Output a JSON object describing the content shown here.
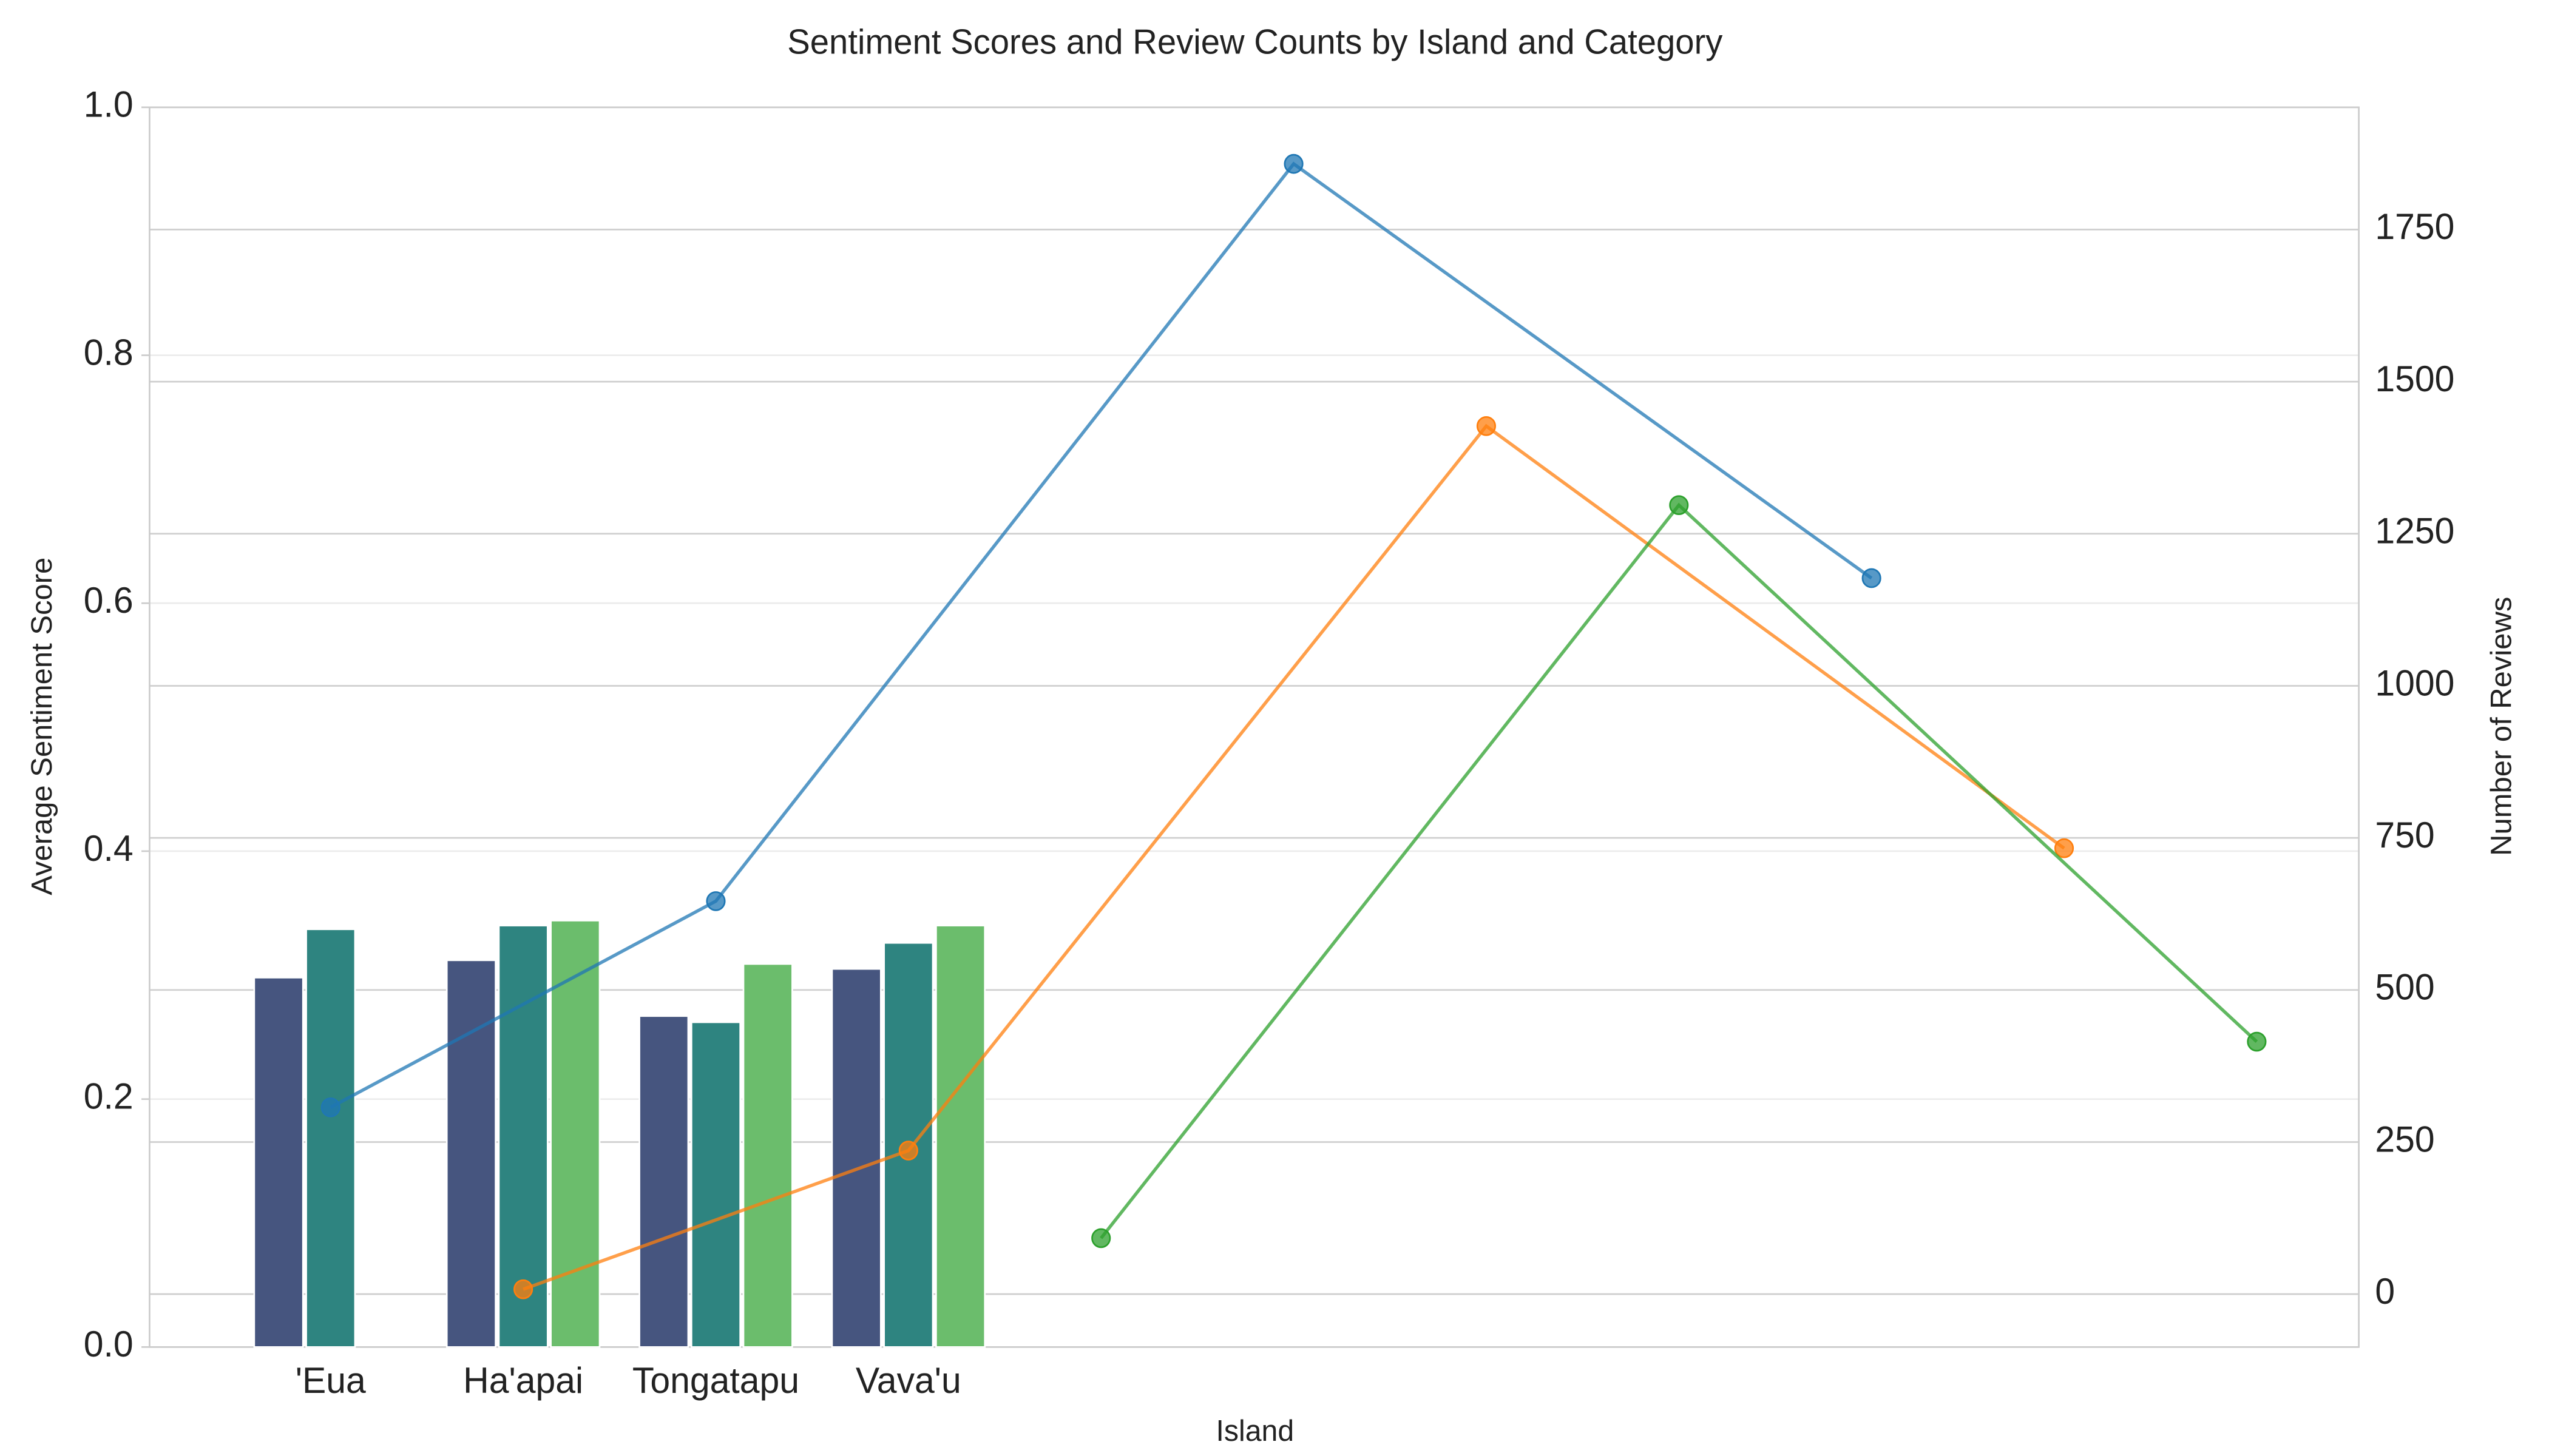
{
  "chart_data": {
    "type": "bar",
    "title": "Sentiment Scores and Review Counts by Island and Category",
    "xlabel": "Island",
    "ylabel": "Average Sentiment Score",
    "y2label": "Number of Reviews",
    "categories": [
      "'Eua",
      "Ha'apai",
      "Tongatapu",
      "Vava'u"
    ],
    "xlim": [
      -0.94,
      10.53
    ],
    "ylim": [
      0,
      1.0
    ],
    "yticks": [
      {
        "value": 0,
        "label": "0.0"
      },
      0.2,
      0.4,
      0.6,
      0.8,
      {
        "value": 1,
        "label": "1.0"
      }
    ],
    "y2lim": [
      -87,
      1951
    ],
    "y2ticks": [
      0,
      250,
      500,
      750,
      1000,
      1250,
      1500,
      1750
    ],
    "grid": true,
    "series": [
      {
        "color": "#46557f",
        "values": [
          0.298,
          0.312,
          0.267,
          0.305
        ]
      },
      {
        "color": "#2e8480",
        "values": [
          0.337,
          0.34,
          0.262,
          0.326
        ]
      },
      {
        "color": "#6bbd6c",
        "values": [
          null,
          0.344,
          0.309,
          0.34
        ]
      },
      {
        "type": "line",
        "axis": "y2",
        "color": "#1f77b4",
        "x": [
          0,
          2,
          5,
          8
        ],
        "values": [
          307,
          646,
          1858,
          1177
        ]
      },
      {
        "type": "line",
        "axis": "y2",
        "color": "#ff7f0e",
        "x": [
          1,
          3,
          6,
          9
        ],
        "values": [
          8,
          236,
          1427,
          733
        ]
      },
      {
        "type": "line",
        "axis": "y2",
        "color": "#2ca02c",
        "x": [
          4,
          7,
          10
        ],
        "values": [
          92,
          1297,
          415
        ]
      }
    ]
  }
}
